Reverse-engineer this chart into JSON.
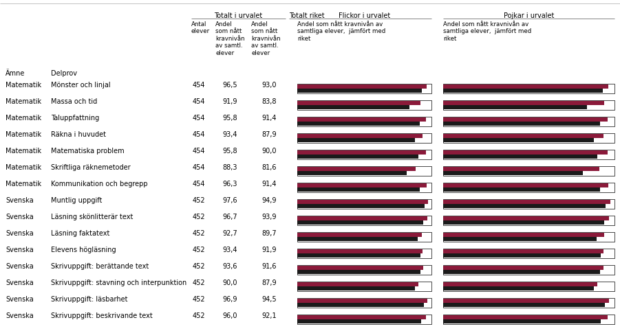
{
  "subjects": [
    "Matematik",
    "Matematik",
    "Matematik",
    "Matematik",
    "Matematik",
    "Matematik",
    "Matematik",
    "Svenska",
    "Svenska",
    "Svenska",
    "Svenska",
    "Svenska",
    "Svenska",
    "Svenska",
    "Svenska"
  ],
  "subtest": [
    "Mönster och linjal",
    "Massa och tid",
    "Taluppfattning",
    "Räkna i huvudet",
    "Matematiska problem",
    "Skriftliga räknemetoder",
    "Kommunikation och begrepp",
    "Muntlig uppgift",
    "Läsning skönlitterär text",
    "Läsning faktatext",
    "Elevens högläsning",
    "Skrivuppgift: berättande text",
    "Skrivuppgift: stavning och interpunktion",
    "Skrivuppgift: läsbarhet",
    "Skrivuppgift: beskrivande text"
  ],
  "antal": [
    454,
    454,
    454,
    454,
    454,
    454,
    454,
    452,
    452,
    452,
    452,
    452,
    452,
    452,
    452
  ],
  "andel_urval": [
    96.5,
    91.9,
    95.8,
    93.4,
    95.8,
    88.3,
    96.3,
    97.6,
    96.7,
    92.7,
    93.4,
    93.6,
    90.0,
    96.9,
    96.0
  ],
  "andel_riket": [
    93.0,
    83.8,
    91.4,
    87.9,
    90.0,
    81.6,
    91.4,
    94.9,
    93.9,
    89.7,
    91.9,
    91.6,
    87.9,
    94.5,
    92.1
  ],
  "flickor_urval": [
    96.5,
    91.9,
    95.8,
    93.4,
    95.8,
    88.3,
    96.3,
    97.6,
    96.7,
    92.7,
    93.4,
    93.6,
    90.0,
    96.9,
    96.0
  ],
  "flickor_riket": [
    93.0,
    83.8,
    91.4,
    87.9,
    90.0,
    81.6,
    91.4,
    94.9,
    93.9,
    89.7,
    91.9,
    91.6,
    87.9,
    94.5,
    92.1
  ],
  "pojkar_urval": [
    96.5,
    94.0,
    95.8,
    93.4,
    95.8,
    91.0,
    96.3,
    97.6,
    96.7,
    94.0,
    93.4,
    93.6,
    90.0,
    96.9,
    96.0
  ],
  "pojkar_riket": [
    93.0,
    83.8,
    91.4,
    87.9,
    90.0,
    81.6,
    91.4,
    94.9,
    93.9,
    89.7,
    91.9,
    91.6,
    87.9,
    94.5,
    92.1
  ],
  "bar_color_urval": "#8B1A3A",
  "bar_color_riket": "#1a1a1a",
  "bg_color": "#ffffff"
}
